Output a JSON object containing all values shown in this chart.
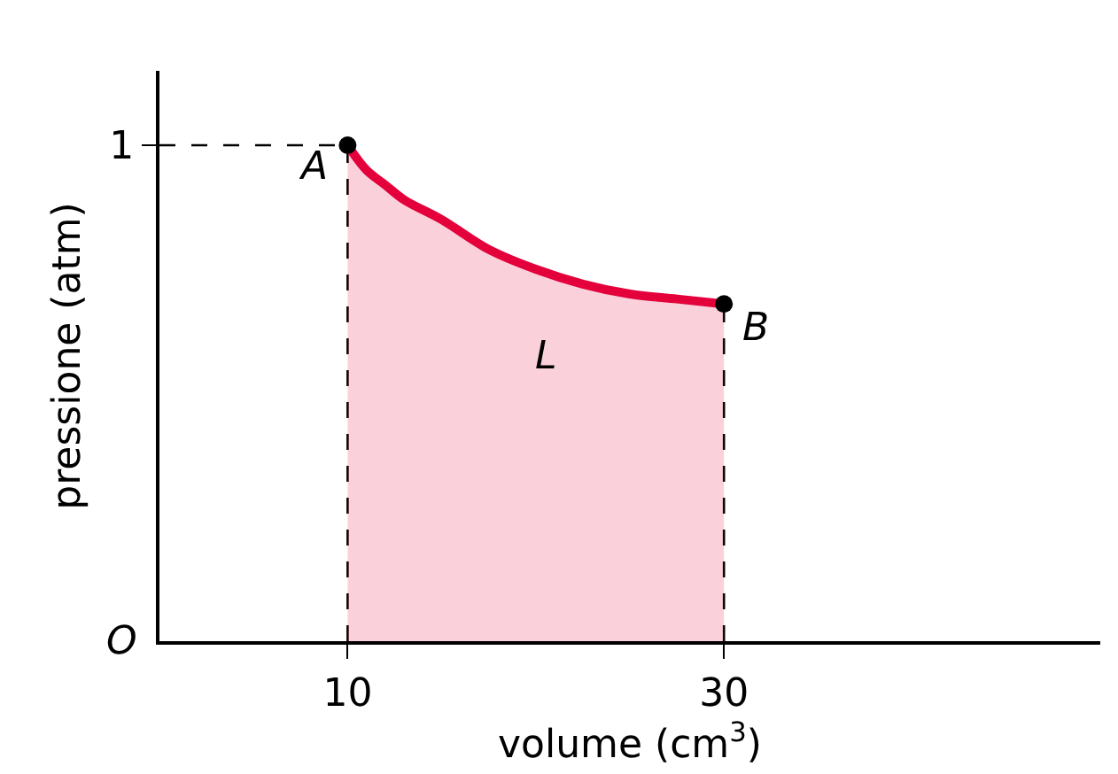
{
  "chart_data": {
    "type": "area",
    "xlabel": "volume (cm$^{3}$)",
    "ylabel": "pressione (atm)",
    "xlim": [
      0,
      50
    ],
    "ylim": [
      0,
      1.15
    ],
    "xticks": [
      10,
      30
    ],
    "yticks": [
      1
    ],
    "series": [
      {
        "color": "#e4003a",
        "x": [
          10,
          11,
          12,
          13,
          15,
          17.5,
          20,
          22.5,
          25,
          27.5,
          30
        ],
        "values": [
          1,
          0.95,
          0.92,
          0.89,
          0.85,
          0.79,
          0.75,
          0.72,
          0.7,
          0.69,
          0.68
        ],
        "marker": "none"
      },
      {
        "type": "scatter",
        "color": "#000000",
        "x": [
          10,
          30
        ],
        "values": [
          1,
          0.68
        ],
        "marker": "circle"
      }
    ],
    "ref_lines": [
      {
        "axis": "y",
        "value": 1,
        "line_style": "dashed",
        "color": "#000000"
      },
      {
        "axis": "x",
        "value": 10,
        "line_style": "dashed",
        "color": "#000000"
      },
      {
        "axis": "x",
        "value": 30,
        "line_style": "dashed",
        "color": "#000000"
      }
    ],
    "annotations": [
      {
        "text": "A",
        "x": 10,
        "y": 1
      },
      {
        "text": "B",
        "x": 30,
        "y": 0.68
      },
      "L",
      "O"
    ],
    "grid": false
  }
}
